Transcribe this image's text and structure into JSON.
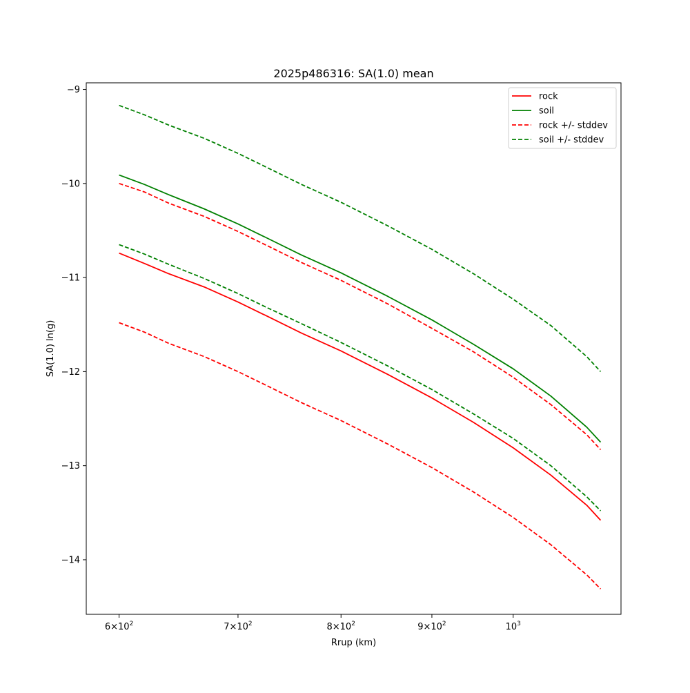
{
  "chart_data": {
    "type": "line",
    "title": "2025p486316: SA(1.0) mean",
    "xlabel": "Rrup (km)",
    "ylabel": "SA(1.0) ln(g)",
    "x_scale": "log",
    "xlim": [
      575,
      1150
    ],
    "ylim": [
      -14.58,
      -8.93
    ],
    "grid": false,
    "legend_position": "top-right",
    "x_ticks": [
      {
        "value": 600,
        "base": "6",
        "power": "2",
        "mult": true
      },
      {
        "value": 700,
        "base": "7",
        "power": "2",
        "mult": true
      },
      {
        "value": 800,
        "base": "8",
        "power": "2",
        "mult": true
      },
      {
        "value": 900,
        "base": "9",
        "power": "2",
        "mult": true
      },
      {
        "value": 1000,
        "base": "",
        "power": "3",
        "mult": false
      }
    ],
    "y_ticks": [
      {
        "value": -9,
        "label": "−9"
      },
      {
        "value": -10,
        "label": "−10"
      },
      {
        "value": -11,
        "label": "−11"
      },
      {
        "value": -12,
        "label": "−12"
      },
      {
        "value": -13,
        "label": "−13"
      },
      {
        "value": -14,
        "label": "−14"
      }
    ],
    "x": [
      600,
      620,
      640,
      670,
      700,
      725,
      760,
      800,
      850,
      900,
      950,
      1000,
      1050,
      1100,
      1120
    ],
    "series": [
      {
        "name": "rock",
        "color": "#ff0000",
        "dash": "solid",
        "values": [
          -10.74,
          -10.85,
          -10.96,
          -11.1,
          -11.26,
          -11.4,
          -11.59,
          -11.78,
          -12.03,
          -12.28,
          -12.54,
          -12.81,
          -13.1,
          -13.42,
          -13.58
        ]
      },
      {
        "name": "soil",
        "color": "#008000",
        "dash": "solid",
        "values": [
          -9.91,
          -10.01,
          -10.12,
          -10.27,
          -10.43,
          -10.57,
          -10.76,
          -10.95,
          -11.2,
          -11.45,
          -11.71,
          -11.97,
          -12.26,
          -12.59,
          -12.75
        ]
      },
      {
        "name": "rock +/- stddev",
        "color": "#ff0000",
        "dash": "dashed",
        "values": [
          -10.0,
          -10.09,
          -10.21,
          -10.35,
          -10.51,
          -10.65,
          -10.84,
          -11.03,
          -11.28,
          -11.54,
          -11.79,
          -12.06,
          -12.35,
          -12.67,
          -12.83
        ]
      },
      {
        "name": "",
        "color": "#ff0000",
        "dash": "dashed",
        "values": [
          -11.48,
          -11.58,
          -11.7,
          -11.84,
          -12.0,
          -12.14,
          -12.33,
          -12.52,
          -12.77,
          -13.02,
          -13.28,
          -13.55,
          -13.84,
          -14.16,
          -14.31
        ]
      },
      {
        "name": "soil +/- stddev",
        "color": "#008000",
        "dash": "dashed",
        "values": [
          -9.17,
          -9.27,
          -9.38,
          -9.52,
          -9.68,
          -9.82,
          -10.01,
          -10.2,
          -10.45,
          -10.7,
          -10.96,
          -11.23,
          -11.51,
          -11.84,
          -12.0
        ]
      },
      {
        "name": "",
        "color": "#008000",
        "dash": "dashed",
        "values": [
          -10.65,
          -10.75,
          -10.86,
          -11.01,
          -11.17,
          -11.31,
          -11.49,
          -11.69,
          -11.94,
          -12.19,
          -12.45,
          -12.71,
          -13.0,
          -13.33,
          -13.48
        ]
      }
    ],
    "legend": [
      {
        "label": "rock",
        "color": "#ff0000",
        "dash": "solid"
      },
      {
        "label": "soil",
        "color": "#008000",
        "dash": "solid"
      },
      {
        "label": "rock +/- stddev",
        "color": "#ff0000",
        "dash": "dashed"
      },
      {
        "label": "soil +/- stddev",
        "color": "#008000",
        "dash": "dashed"
      }
    ]
  }
}
